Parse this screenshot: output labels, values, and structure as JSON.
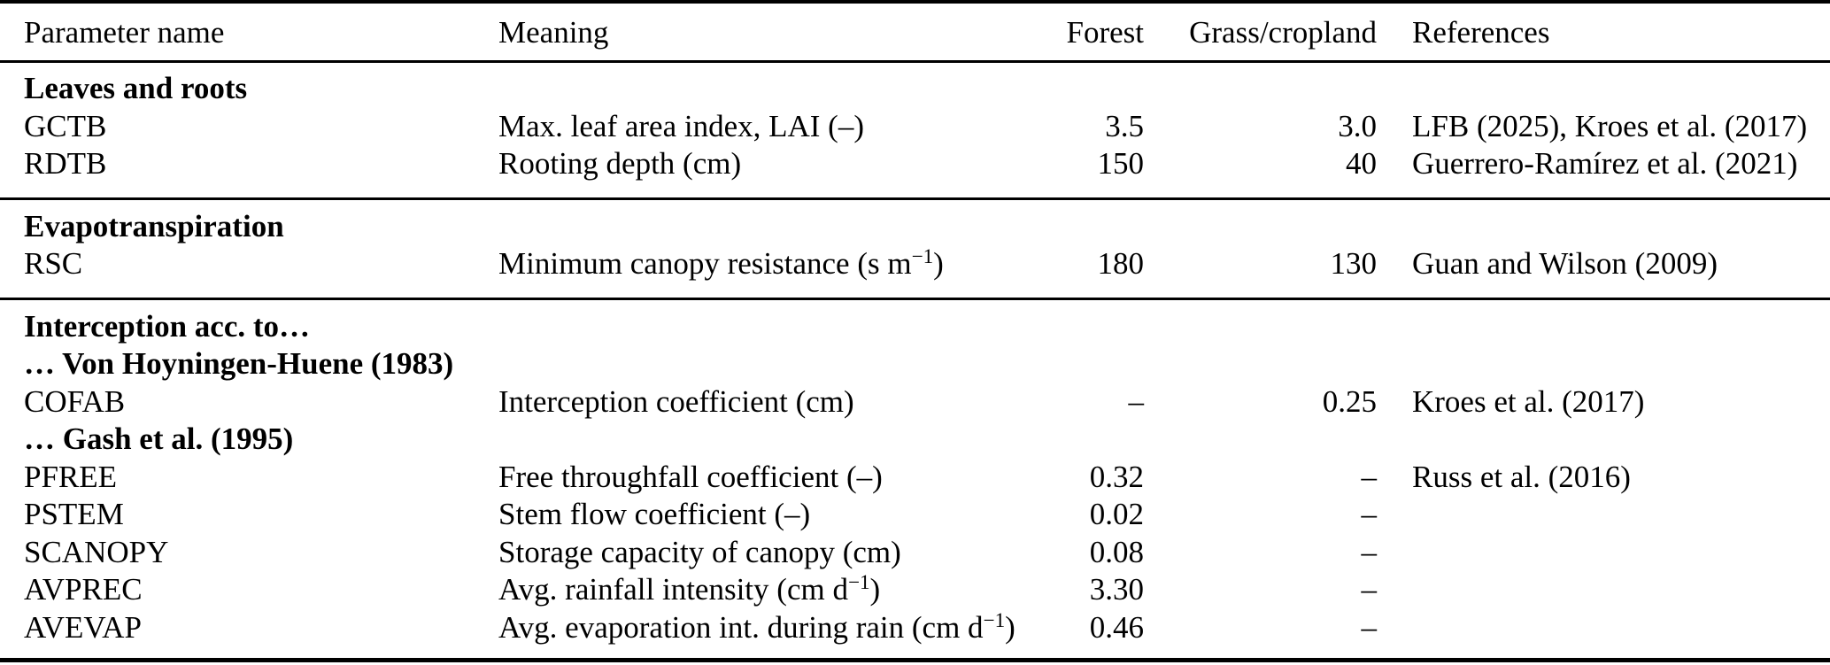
{
  "colors": {
    "text": "#000000",
    "background": "#ffffff",
    "rule": "#000000"
  },
  "table": {
    "columns": [
      {
        "key": "parameter",
        "label": "Parameter name",
        "align": "left"
      },
      {
        "key": "meaning",
        "label": "Meaning",
        "align": "left"
      },
      {
        "key": "forest",
        "label": "Forest",
        "align": "right"
      },
      {
        "key": "grass_cropland",
        "label": "Grass/cropland",
        "align": "right"
      },
      {
        "key": "references",
        "label": "References",
        "align": "left"
      }
    ],
    "rows": [
      {
        "type": "section",
        "label": "Leaves and roots"
      },
      {
        "type": "data",
        "cells": [
          "GCTB",
          "Max. leaf area index, LAI (–)",
          "3.5",
          "3.0",
          "LFB (2025), Kroes et al. (2017)"
        ]
      },
      {
        "type": "data",
        "cells": [
          "RDTB",
          "Rooting depth (cm)",
          "150",
          "40",
          "Guerrero-Ramírez et al. (2021)"
        ]
      },
      {
        "type": "rule"
      },
      {
        "type": "section",
        "label": "Evapotranspiration"
      },
      {
        "type": "data",
        "cells": [
          "RSC",
          "Minimum canopy resistance (s m^{−1})",
          "180",
          "130",
          "Guan and Wilson (2009)"
        ]
      },
      {
        "type": "rule"
      },
      {
        "type": "section",
        "label": "Interception acc. to…"
      },
      {
        "type": "section",
        "label": "… Von Hoyningen-Huene (1983)"
      },
      {
        "type": "data",
        "cells": [
          "COFAB",
          "Interception coefficient (cm)",
          "–",
          "0.25",
          "Kroes et al. (2017)"
        ]
      },
      {
        "type": "section",
        "label": "… Gash et al. (1995)"
      },
      {
        "type": "data",
        "cells": [
          "PFREE",
          "Free throughfall coefficient (–)",
          "0.32",
          "–",
          "Russ et al. (2016)"
        ]
      },
      {
        "type": "data",
        "cells": [
          "PSTEM",
          "Stem flow coefficient (–)",
          "0.02",
          "–",
          ""
        ]
      },
      {
        "type": "data",
        "cells": [
          "SCANOPY",
          "Storage capacity of canopy (cm)",
          "0.08",
          "–",
          ""
        ]
      },
      {
        "type": "data",
        "cells": [
          "AVPREC",
          "Avg. rainfall intensity (cm d^{−1})",
          "3.30",
          "–",
          ""
        ]
      },
      {
        "type": "data",
        "cells": [
          "AVEVAP",
          "Avg. evaporation int. during rain (cm d^{−1})",
          "0.46",
          "–",
          ""
        ]
      }
    ]
  }
}
